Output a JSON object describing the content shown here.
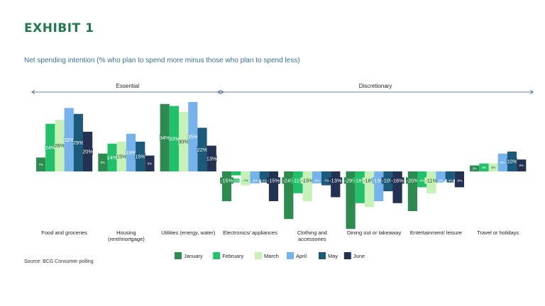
{
  "exhibit_title": "EXHIBIT 1",
  "subtitle": "Net spending intention (% who plan to spend more minus those who plan to spend less)",
  "source": "Source: BCG Consumer polling",
  "colors": {
    "title": "#1f7a4d",
    "subtitle": "#3a6f9a",
    "section_line": "#3a5a8a",
    "series": [
      "#2e8b4f",
      "#22c06b",
      "#c6f2b8",
      "#76b3ec",
      "#1b5a78",
      "#233152"
    ]
  },
  "chart_data": {
    "type": "bar",
    "title": "Net spending intention (% who plan to spend more minus those who plan to spend less)",
    "ylabel": "",
    "xlabel": "",
    "ylim": [
      -35,
      36
    ],
    "grid": false,
    "legend": "bottom",
    "groups": [
      {
        "label": "Essential",
        "categories": [
          0,
          1,
          2
        ]
      },
      {
        "label": "Discretionary",
        "categories": [
          3,
          4,
          5,
          6,
          7
        ]
      }
    ],
    "categories": [
      "Food and groceries",
      "Housing (rent/mortgage)",
      "Utilities (energy, water)",
      "Electronics/ appliances",
      "Clothing and accessories",
      "Dining out or takeaway",
      "Entertainment/ leisure",
      "Travel or holidays"
    ],
    "category_lines": [
      [
        "Food and groceries"
      ],
      [
        "Housing",
        "(rent/mortgage)"
      ],
      [
        "Utilities (energy, water)"
      ],
      [
        "Electronics/ appliances"
      ],
      [
        "Clothing and",
        "accessories"
      ],
      [
        "Dining out or takeaway"
      ],
      [
        "Entertainment/ leisure"
      ],
      [
        "Travel or holidays"
      ]
    ],
    "series": [
      {
        "name": "January",
        "values": [
          7,
          9,
          34,
          -15,
          -24,
          -29,
          -20,
          3
        ],
        "labels": [
          "7%",
          "9%",
          "34%",
          "-15%",
          "-24%",
          "-29%",
          "-20%",
          "3%"
        ]
      },
      {
        "name": "February",
        "values": [
          24,
          14,
          33,
          -2,
          -11,
          -16,
          -8,
          4
        ],
        "labels": [
          "24%",
          "14%",
          "33%",
          "-2%",
          "-11%",
          "-16%",
          "-8%",
          "4%"
        ]
      },
      {
        "name": "March",
        "values": [
          26,
          15,
          30,
          -7,
          -15,
          -18,
          -11,
          4
        ],
        "labels": [
          "26%",
          "15%",
          "30%",
          "-7%",
          "-15%",
          "-18%",
          "-11%",
          "4%"
        ]
      },
      {
        "name": "April",
        "values": [
          32,
          19,
          35,
          -6,
          -6,
          -15,
          -5,
          9
        ],
        "labels": [
          "32%",
          "19%",
          "35%",
          "-6%",
          "-6%",
          "-15%",
          "-5%",
          "9%"
        ]
      },
      {
        "name": "May",
        "values": [
          29,
          15,
          22,
          -4,
          -7,
          -10,
          -4,
          10
        ],
        "labels": [
          "29%",
          "15%",
          "22%",
          "-4%",
          "-7%",
          "-10%",
          "-4%",
          "10%"
        ]
      },
      {
        "name": "June",
        "values": [
          20,
          8,
          13,
          -15,
          -13,
          -16,
          -8,
          6
        ],
        "labels": [
          "20%",
          "8%",
          "13%",
          "-15%",
          "-13%",
          "-16%",
          "-8%",
          "6%"
        ]
      }
    ]
  }
}
